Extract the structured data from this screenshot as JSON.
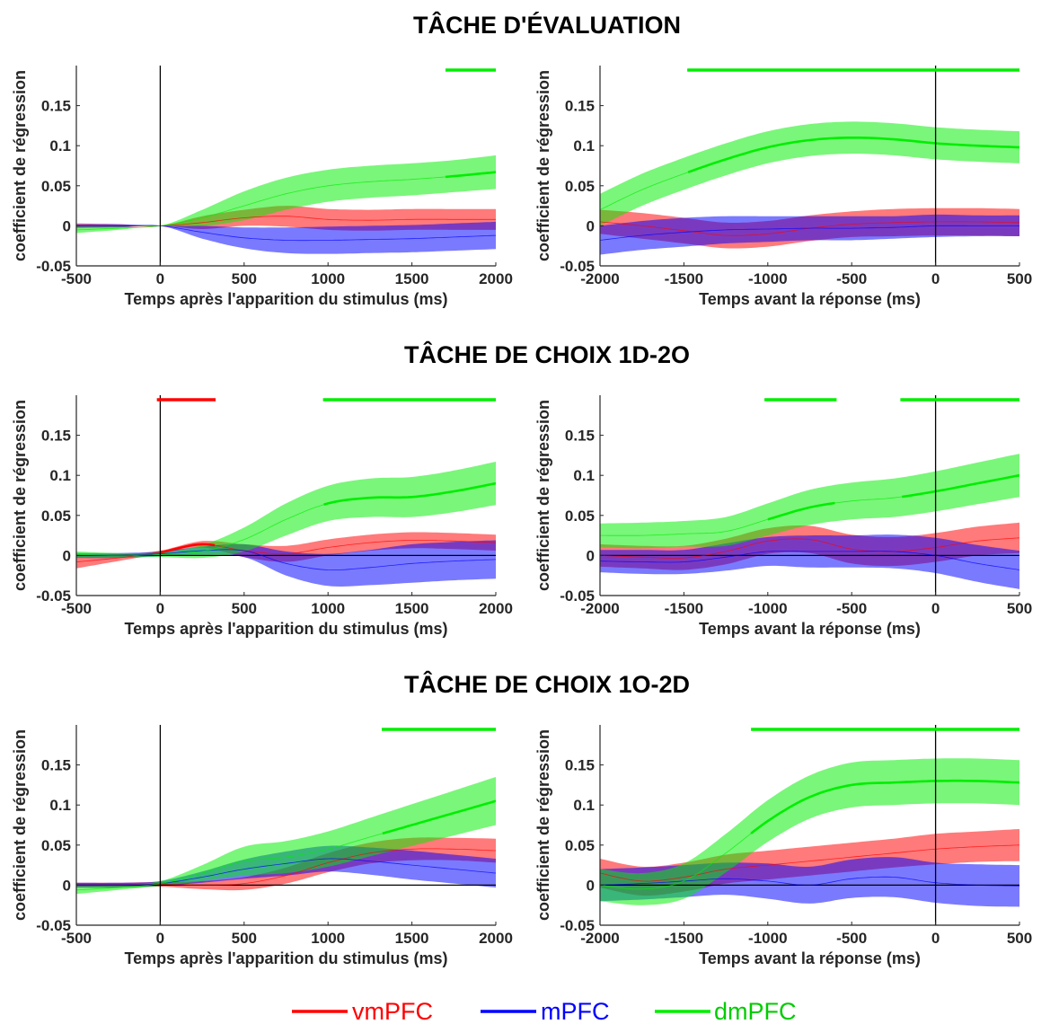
{
  "rows": [
    {
      "title": "TÂCHE D'ÉVALUATION"
    },
    {
      "title": "TÂCHE DE CHOIX 1D-2O"
    },
    {
      "title": "TÂCHE DE CHOIX 1O-2D"
    }
  ],
  "legend": [
    {
      "name": "vmPFC",
      "color": "#ff0000"
    },
    {
      "name": "mPFC",
      "color": "#0000ff"
    },
    {
      "name": "dmPFC",
      "color": "#00ee00"
    }
  ],
  "chart_data": [
    {
      "type": "line",
      "row": 0,
      "col": 0,
      "xlabel": "Temps après l'apparition du stimulus (ms)",
      "ylabel": "coefficient de régression",
      "xlim": [
        -500,
        2000
      ],
      "ylim": [
        -0.05,
        0.2
      ],
      "xticks": [
        "-500",
        "0",
        "500",
        "1000",
        "1500",
        "2000"
      ],
      "yticks": [
        "-0.05",
        "0",
        "0.05",
        "0.1",
        "0.15"
      ],
      "vline": 0,
      "hline": false,
      "series": [
        {
          "name": "vmPFC",
          "x": [
            -500,
            -250,
            0,
            250,
            500,
            750,
            1000,
            1250,
            1500,
            1750,
            2000
          ],
          "y": [
            0.0,
            0.0,
            0.0,
            0.004,
            0.01,
            0.012,
            0.008,
            0.007,
            0.008,
            0.008,
            0.008
          ],
          "half_width": [
            0.003,
            0.002,
            0.0,
            0.008,
            0.01,
            0.013,
            0.013,
            0.013,
            0.013,
            0.013,
            0.013
          ],
          "significant": []
        },
        {
          "name": "mPFC",
          "x": [
            -500,
            -250,
            0,
            250,
            500,
            750,
            1000,
            1250,
            1500,
            1750,
            2000
          ],
          "y": [
            0.0,
            0.0,
            0.0,
            -0.008,
            -0.015,
            -0.018,
            -0.018,
            -0.017,
            -0.016,
            -0.014,
            -0.012
          ],
          "half_width": [
            0.002,
            0.002,
            0.0,
            0.008,
            0.013,
            0.016,
            0.017,
            0.017,
            0.017,
            0.017,
            0.017
          ],
          "significant": []
        },
        {
          "name": "dmPFC",
          "x": [
            -500,
            -250,
            0,
            250,
            500,
            750,
            1000,
            1250,
            1500,
            1750,
            2000
          ],
          "y": [
            -0.005,
            -0.003,
            0.0,
            0.01,
            0.025,
            0.04,
            0.05,
            0.055,
            0.058,
            0.062,
            0.067
          ],
          "half_width": [
            0.004,
            0.002,
            0.0,
            0.01,
            0.018,
            0.02,
            0.02,
            0.02,
            0.02,
            0.02,
            0.021
          ],
          "significant": [
            [
              1700,
              2000
            ]
          ]
        }
      ]
    },
    {
      "type": "line",
      "row": 0,
      "col": 1,
      "xlabel": "Temps avant la réponse (ms)",
      "ylabel": "coefficient de régression",
      "xlim": [
        -2000,
        500
      ],
      "ylim": [
        -0.05,
        0.2
      ],
      "xticks": [
        "-2000",
        "-1500",
        "-1000",
        "-500",
        "0",
        "500"
      ],
      "yticks": [
        "-0.05",
        "0",
        "0.05",
        "0.1",
        "0.15"
      ],
      "vline": 0,
      "hline": false,
      "series": [
        {
          "name": "vmPFC",
          "x": [
            -2000,
            -1750,
            -1500,
            -1250,
            -1000,
            -750,
            -500,
            -250,
            0,
            250,
            500
          ],
          "y": [
            0.005,
            0.0,
            -0.006,
            -0.012,
            -0.01,
            -0.003,
            0.002,
            0.004,
            0.005,
            0.005,
            0.004
          ],
          "half_width": [
            0.015,
            0.016,
            0.016,
            0.016,
            0.016,
            0.016,
            0.016,
            0.017,
            0.017,
            0.017,
            0.017
          ],
          "significant": []
        },
        {
          "name": "mPFC",
          "x": [
            -2000,
            -1750,
            -1500,
            -1250,
            -1000,
            -750,
            -500,
            -250,
            0,
            250,
            500
          ],
          "y": [
            -0.018,
            -0.012,
            -0.008,
            -0.005,
            -0.004,
            -0.003,
            -0.003,
            -0.002,
            0.0,
            0.0,
            0.0
          ],
          "half_width": [
            0.018,
            0.018,
            0.018,
            0.017,
            0.016,
            0.015,
            0.015,
            0.014,
            0.014,
            0.013,
            0.013
          ],
          "significant": []
        },
        {
          "name": "dmPFC",
          "x": [
            -2000,
            -1750,
            -1500,
            -1250,
            -1000,
            -750,
            -500,
            -250,
            0,
            250,
            500
          ],
          "y": [
            0.02,
            0.045,
            0.065,
            0.083,
            0.098,
            0.107,
            0.11,
            0.108,
            0.103,
            0.1,
            0.098
          ],
          "half_width": [
            0.02,
            0.02,
            0.02,
            0.02,
            0.02,
            0.02,
            0.02,
            0.02,
            0.02,
            0.02,
            0.02
          ],
          "significant": [
            [
              -1480,
              500
            ]
          ]
        }
      ]
    },
    {
      "type": "line",
      "row": 1,
      "col": 0,
      "xlabel": "Temps après l'apparition du stimulus (ms)",
      "ylabel": "coefficient de régression",
      "xlim": [
        -500,
        2000
      ],
      "ylim": [
        -0.05,
        0.2
      ],
      "xticks": [
        "-500",
        "0",
        "500",
        "1000",
        "1500",
        "2000"
      ],
      "yticks": [
        "-0.05",
        "0",
        "0.05",
        "0.1",
        "0.15"
      ],
      "vline": 0,
      "hline": true,
      "series": [
        {
          "name": "vmPFC",
          "x": [
            -500,
            -250,
            0,
            250,
            500,
            750,
            1000,
            1250,
            1500,
            1750,
            2000
          ],
          "y": [
            -0.008,
            -0.003,
            0.004,
            0.014,
            0.006,
            0.002,
            0.01,
            0.016,
            0.019,
            0.018,
            0.016
          ],
          "half_width": [
            0.008,
            0.004,
            0.002,
            0.004,
            0.008,
            0.01,
            0.01,
            0.01,
            0.01,
            0.01,
            0.01
          ],
          "significant": [
            [
              -20,
              330
            ]
          ]
        },
        {
          "name": "mPFC",
          "x": [
            -500,
            -250,
            0,
            250,
            500,
            750,
            1000,
            1250,
            1500,
            1750,
            2000
          ],
          "y": [
            0.0,
            0.0,
            0.002,
            0.006,
            0.006,
            -0.01,
            -0.018,
            -0.015,
            -0.01,
            -0.007,
            -0.005
          ],
          "half_width": [
            0.003,
            0.003,
            0.003,
            0.005,
            0.008,
            0.015,
            0.02,
            0.022,
            0.024,
            0.024,
            0.024
          ],
          "significant": []
        },
        {
          "name": "dmPFC",
          "x": [
            -500,
            -250,
            0,
            250,
            500,
            750,
            1000,
            1250,
            1500,
            1750,
            2000
          ],
          "y": [
            0.001,
            0.0,
            0.001,
            0.005,
            0.02,
            0.045,
            0.065,
            0.072,
            0.073,
            0.08,
            0.09
          ],
          "half_width": [
            0.004,
            0.003,
            0.003,
            0.008,
            0.015,
            0.02,
            0.022,
            0.024,
            0.025,
            0.026,
            0.027
          ],
          "significant": [
            [
              970,
              2000
            ]
          ]
        }
      ]
    },
    {
      "type": "line",
      "row": 1,
      "col": 1,
      "xlabel": "Temps avant la réponse (ms)",
      "ylabel": "coefficient de régression",
      "xlim": [
        -2000,
        500
      ],
      "ylim": [
        -0.05,
        0.2
      ],
      "xticks": [
        "-2000",
        "-1500",
        "-1000",
        "-500",
        "0",
        "500"
      ],
      "yticks": [
        "-0.05",
        "0",
        "0.05",
        "0.1",
        "0.15"
      ],
      "vline": 0,
      "hline": true,
      "series": [
        {
          "name": "vmPFC",
          "x": [
            -2000,
            -1750,
            -1500,
            -1250,
            -1000,
            -750,
            -500,
            -250,
            0,
            250,
            500
          ],
          "y": [
            0.0,
            -0.002,
            -0.003,
            0.005,
            0.018,
            0.02,
            0.008,
            0.005,
            0.01,
            0.018,
            0.022
          ],
          "half_width": [
            0.014,
            0.014,
            0.015,
            0.016,
            0.016,
            0.017,
            0.018,
            0.018,
            0.018,
            0.018,
            0.019
          ],
          "significant": []
        },
        {
          "name": "mPFC",
          "x": [
            -2000,
            -1750,
            -1500,
            -1250,
            -1000,
            -750,
            -500,
            -250,
            0,
            250,
            500
          ],
          "y": [
            -0.007,
            -0.008,
            -0.008,
            -0.002,
            0.005,
            0.005,
            0.005,
            0.005,
            0.0,
            -0.01,
            -0.018
          ],
          "half_width": [
            0.014,
            0.015,
            0.015,
            0.017,
            0.018,
            0.02,
            0.02,
            0.021,
            0.022,
            0.023,
            0.024
          ],
          "significant": []
        },
        {
          "name": "dmPFC",
          "x": [
            -2000,
            -1750,
            -1500,
            -1250,
            -1000,
            -750,
            -500,
            -250,
            0,
            250,
            500
          ],
          "y": [
            0.025,
            0.025,
            0.027,
            0.03,
            0.045,
            0.06,
            0.068,
            0.072,
            0.08,
            0.09,
            0.1
          ],
          "half_width": [
            0.015,
            0.016,
            0.016,
            0.018,
            0.02,
            0.022,
            0.023,
            0.024,
            0.025,
            0.026,
            0.027
          ],
          "significant": [
            [
              -1020,
              -590
            ],
            [
              -210,
              500
            ]
          ]
        }
      ]
    },
    {
      "type": "line",
      "row": 2,
      "col": 0,
      "xlabel": "Temps après l'apparition du stimulus (ms)",
      "ylabel": "coefficient de régression",
      "xlim": [
        -500,
        2000
      ],
      "ylim": [
        -0.05,
        0.2
      ],
      "xticks": [
        "-500",
        "0",
        "500",
        "1000",
        "1500",
        "2000"
      ],
      "yticks": [
        "-0.05",
        "0",
        "0.05",
        "0.1",
        "0.15"
      ],
      "vline": 0,
      "hline": true,
      "series": [
        {
          "name": "vmPFC",
          "x": [
            -500,
            -250,
            0,
            250,
            500,
            750,
            1000,
            1250,
            1500,
            1750,
            2000
          ],
          "y": [
            0.0,
            0.0,
            0.001,
            0.0,
            0.002,
            0.012,
            0.028,
            0.04,
            0.045,
            0.045,
            0.043
          ],
          "half_width": [
            0.003,
            0.003,
            0.003,
            0.005,
            0.008,
            0.01,
            0.012,
            0.013,
            0.014,
            0.014,
            0.015
          ],
          "significant": []
        },
        {
          "name": "mPFC",
          "x": [
            -500,
            -250,
            0,
            250,
            500,
            750,
            1000,
            1250,
            1500,
            1750,
            2000
          ],
          "y": [
            0.0,
            0.0,
            0.002,
            0.01,
            0.02,
            0.027,
            0.033,
            0.03,
            0.025,
            0.02,
            0.015
          ],
          "half_width": [
            0.003,
            0.003,
            0.003,
            0.007,
            0.012,
            0.015,
            0.016,
            0.017,
            0.018,
            0.018,
            0.018
          ],
          "significant": []
        },
        {
          "name": "dmPFC",
          "x": [
            -500,
            -250,
            0,
            250,
            500,
            750,
            1000,
            1250,
            1500,
            1750,
            2000
          ],
          "y": [
            -0.006,
            -0.003,
            0.002,
            0.015,
            0.03,
            0.035,
            0.045,
            0.06,
            0.075,
            0.09,
            0.105
          ],
          "half_width": [
            0.005,
            0.003,
            0.003,
            0.01,
            0.018,
            0.02,
            0.022,
            0.024,
            0.026,
            0.028,
            0.03
          ],
          "significant": [
            [
              1320,
              2000
            ]
          ]
        }
      ]
    },
    {
      "type": "line",
      "row": 2,
      "col": 1,
      "xlabel": "Temps avant la réponse (ms)",
      "ylabel": "coefficient de régression",
      "xlim": [
        -2000,
        500
      ],
      "ylim": [
        -0.05,
        0.2
      ],
      "xticks": [
        "-2000",
        "-1500",
        "-1000",
        "-500",
        "0",
        "500"
      ],
      "yticks": [
        "-0.05",
        "0",
        "0.05",
        "0.1",
        "0.15"
      ],
      "vline": 0,
      "hline": true,
      "series": [
        {
          "name": "vmPFC",
          "x": [
            -2000,
            -1750,
            -1500,
            -1250,
            -1000,
            -750,
            -500,
            -250,
            0,
            250,
            500
          ],
          "y": [
            0.015,
            0.005,
            0.01,
            0.02,
            0.025,
            0.03,
            0.035,
            0.04,
            0.045,
            0.048,
            0.05
          ],
          "half_width": [
            0.018,
            0.018,
            0.018,
            0.018,
            0.018,
            0.018,
            0.018,
            0.018,
            0.019,
            0.019,
            0.02
          ],
          "significant": []
        },
        {
          "name": "mPFC",
          "x": [
            -2000,
            -1750,
            -1500,
            -1250,
            -1000,
            -750,
            -500,
            -250,
            0,
            250,
            500
          ],
          "y": [
            0.0,
            0.002,
            0.005,
            0.008,
            0.005,
            0.0,
            0.008,
            0.01,
            0.003,
            0.0,
            -0.001
          ],
          "half_width": [
            0.02,
            0.02,
            0.02,
            0.02,
            0.022,
            0.023,
            0.024,
            0.025,
            0.025,
            0.026,
            0.026
          ],
          "significant": []
        },
        {
          "name": "dmPFC",
          "x": [
            -2000,
            -1750,
            -1500,
            -1250,
            -1000,
            -750,
            -500,
            -250,
            0,
            250,
            500
          ],
          "y": [
            0.0,
            -0.005,
            0.005,
            0.04,
            0.08,
            0.11,
            0.125,
            0.128,
            0.13,
            0.13,
            0.128
          ],
          "half_width": [
            0.02,
            0.02,
            0.022,
            0.024,
            0.026,
            0.027,
            0.028,
            0.028,
            0.028,
            0.028,
            0.028
          ],
          "significant": [
            [
              -1100,
              500
            ]
          ]
        }
      ]
    }
  ]
}
